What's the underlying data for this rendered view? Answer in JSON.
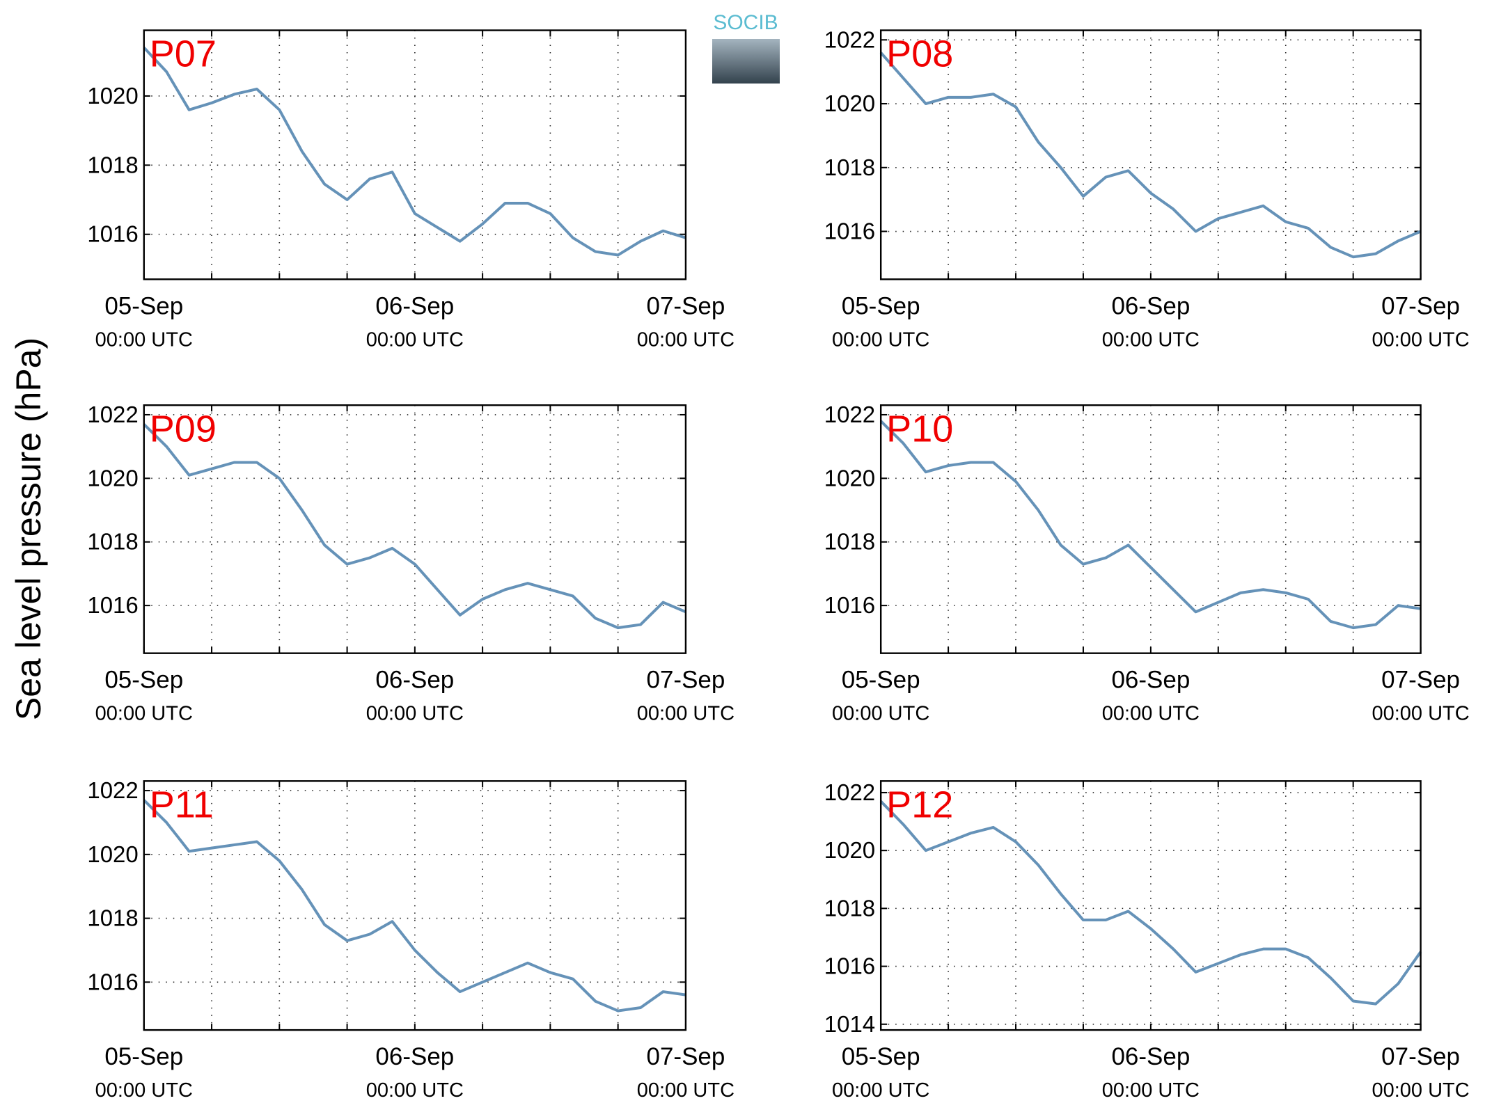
{
  "ylabel": "Sea level pressure (hPa)",
  "logo": "SOCIB",
  "chart_data": [
    {
      "type": "line",
      "annotation": "P07",
      "xlim": [
        "05-Sep 00:00",
        "07-Sep 00:00"
      ],
      "ylim": [
        1014.7,
        1021.9
      ],
      "xticks": [
        {
          "value": "05-Sep 00:00",
          "label": "05-Sep\n00:00 UTC"
        },
        {
          "value": "06-Sep 00:00",
          "label": "06-Sep\n00:00 UTC"
        },
        {
          "value": "07-Sep 00:00",
          "label": "07-Sep\n00:00 UTC"
        }
      ],
      "xminor": [
        "05-Sep 06:00",
        "05-Sep 12:00",
        "05-Sep 18:00",
        "06-Sep 06:00",
        "06-Sep 12:00",
        "06-Sep 18:00"
      ],
      "yticks": [
        1016,
        1018,
        1020
      ],
      "grid": true,
      "x": [
        "05-Sep 00:00",
        "05-Sep 02:00",
        "05-Sep 04:00",
        "05-Sep 06:00",
        "05-Sep 08:00",
        "05-Sep 10:00",
        "05-Sep 12:00",
        "05-Sep 14:00",
        "05-Sep 16:00",
        "05-Sep 18:00",
        "05-Sep 20:00",
        "05-Sep 22:00",
        "06-Sep 00:00",
        "06-Sep 02:00",
        "06-Sep 04:00",
        "06-Sep 06:00",
        "06-Sep 08:00",
        "06-Sep 10:00",
        "06-Sep 12:00",
        "06-Sep 14:00",
        "06-Sep 16:00",
        "06-Sep 18:00",
        "06-Sep 20:00",
        "06-Sep 22:00",
        "07-Sep 00:00"
      ],
      "series": [
        {
          "color": "#6592b8",
          "values": [
            1021.4,
            1020.7,
            1019.6,
            1019.8,
            1020.05,
            1020.2,
            1019.6,
            1018.4,
            1017.45,
            1017.0,
            1017.6,
            1017.8,
            1016.6,
            1016.2,
            1015.8,
            1016.3,
            1016.9,
            1016.9,
            1016.6,
            1015.9,
            1015.5,
            1015.4,
            1015.8,
            1016.1,
            1015.9
          ]
        }
      ]
    },
    {
      "type": "line",
      "annotation": "P08",
      "xlim": [
        "05-Sep 00:00",
        "07-Sep 00:00"
      ],
      "ylim": [
        1014.5,
        1022.3
      ],
      "xticks": [
        {
          "value": "05-Sep 00:00",
          "label": "05-Sep\n00:00 UTC"
        },
        {
          "value": "06-Sep 00:00",
          "label": "06-Sep\n00:00 UTC"
        },
        {
          "value": "07-Sep 00:00",
          "label": "07-Sep\n00:00 UTC"
        }
      ],
      "xminor": [
        "05-Sep 06:00",
        "05-Sep 12:00",
        "05-Sep 18:00",
        "06-Sep 06:00",
        "06-Sep 12:00",
        "06-Sep 18:00"
      ],
      "yticks": [
        1016,
        1018,
        1020,
        1022
      ],
      "grid": true,
      "x": [
        "05-Sep 00:00",
        "05-Sep 02:00",
        "05-Sep 04:00",
        "05-Sep 06:00",
        "05-Sep 08:00",
        "05-Sep 10:00",
        "05-Sep 12:00",
        "05-Sep 14:00",
        "05-Sep 16:00",
        "05-Sep 18:00",
        "05-Sep 20:00",
        "05-Sep 22:00",
        "06-Sep 00:00",
        "06-Sep 02:00",
        "06-Sep 04:00",
        "06-Sep 06:00",
        "06-Sep 08:00",
        "06-Sep 10:00",
        "06-Sep 12:00",
        "06-Sep 14:00",
        "06-Sep 16:00",
        "06-Sep 18:00",
        "06-Sep 20:00",
        "06-Sep 22:00",
        "07-Sep 00:00"
      ],
      "series": [
        {
          "color": "#6592b8",
          "values": [
            1021.6,
            1020.8,
            1020.0,
            1020.2,
            1020.2,
            1020.3,
            1019.9,
            1018.8,
            1018.0,
            1017.1,
            1017.7,
            1017.9,
            1017.2,
            1016.7,
            1016.0,
            1016.4,
            1016.6,
            1016.8,
            1016.3,
            1016.1,
            1015.5,
            1015.2,
            1015.3,
            1015.7,
            1016.0
          ]
        }
      ]
    },
    {
      "type": "line",
      "annotation": "P09",
      "xlim": [
        "05-Sep 00:00",
        "07-Sep 00:00"
      ],
      "ylim": [
        1014.5,
        1022.3
      ],
      "xticks": [
        {
          "value": "05-Sep 00:00",
          "label": "05-Sep\n00:00 UTC"
        },
        {
          "value": "06-Sep 00:00",
          "label": "06-Sep\n00:00 UTC"
        },
        {
          "value": "07-Sep 00:00",
          "label": "07-Sep\n00:00 UTC"
        }
      ],
      "xminor": [
        "05-Sep 06:00",
        "05-Sep 12:00",
        "05-Sep 18:00",
        "06-Sep 06:00",
        "06-Sep 12:00",
        "06-Sep 18:00"
      ],
      "yticks": [
        1016,
        1018,
        1020,
        1022
      ],
      "grid": true,
      "x": [
        "05-Sep 00:00",
        "05-Sep 02:00",
        "05-Sep 04:00",
        "05-Sep 06:00",
        "05-Sep 08:00",
        "05-Sep 10:00",
        "05-Sep 12:00",
        "05-Sep 14:00",
        "05-Sep 16:00",
        "05-Sep 18:00",
        "05-Sep 20:00",
        "05-Sep 22:00",
        "06-Sep 00:00",
        "06-Sep 02:00",
        "06-Sep 04:00",
        "06-Sep 06:00",
        "06-Sep 08:00",
        "06-Sep 10:00",
        "06-Sep 12:00",
        "06-Sep 14:00",
        "06-Sep 16:00",
        "06-Sep 18:00",
        "06-Sep 20:00",
        "06-Sep 22:00",
        "07-Sep 00:00"
      ],
      "series": [
        {
          "color": "#6592b8",
          "values": [
            1021.7,
            1021.0,
            1020.1,
            1020.3,
            1020.5,
            1020.5,
            1020.0,
            1019.0,
            1017.9,
            1017.3,
            1017.5,
            1017.8,
            1017.3,
            1016.5,
            1015.7,
            1016.2,
            1016.5,
            1016.7,
            1016.5,
            1016.3,
            1015.6,
            1015.3,
            1015.4,
            1016.1,
            1015.8
          ]
        }
      ]
    },
    {
      "type": "line",
      "annotation": "P10",
      "xlim": [
        "05-Sep 00:00",
        "07-Sep 00:00"
      ],
      "ylim": [
        1014.5,
        1022.3
      ],
      "xticks": [
        {
          "value": "05-Sep 00:00",
          "label": "05-Sep\n00:00 UTC"
        },
        {
          "value": "06-Sep 00:00",
          "label": "06-Sep\n00:00 UTC"
        },
        {
          "value": "07-Sep 00:00",
          "label": "07-Sep\n00:00 UTC"
        }
      ],
      "xminor": [
        "05-Sep 06:00",
        "05-Sep 12:00",
        "05-Sep 18:00",
        "06-Sep 06:00",
        "06-Sep 12:00",
        "06-Sep 18:00"
      ],
      "yticks": [
        1016,
        1018,
        1020,
        1022
      ],
      "grid": true,
      "x": [
        "05-Sep 00:00",
        "05-Sep 02:00",
        "05-Sep 04:00",
        "05-Sep 06:00",
        "05-Sep 08:00",
        "05-Sep 10:00",
        "05-Sep 12:00",
        "05-Sep 14:00",
        "05-Sep 16:00",
        "05-Sep 18:00",
        "05-Sep 20:00",
        "05-Sep 22:00",
        "06-Sep 00:00",
        "06-Sep 02:00",
        "06-Sep 04:00",
        "06-Sep 06:00",
        "06-Sep 08:00",
        "06-Sep 10:00",
        "06-Sep 12:00",
        "06-Sep 14:00",
        "06-Sep 16:00",
        "06-Sep 18:00",
        "06-Sep 20:00",
        "06-Sep 22:00",
        "07-Sep 00:00"
      ],
      "series": [
        {
          "color": "#6592b8",
          "values": [
            1021.8,
            1021.1,
            1020.2,
            1020.4,
            1020.5,
            1020.5,
            1019.9,
            1019.0,
            1017.9,
            1017.3,
            1017.5,
            1017.9,
            1017.2,
            1016.5,
            1015.8,
            1016.1,
            1016.4,
            1016.5,
            1016.4,
            1016.2,
            1015.5,
            1015.3,
            1015.4,
            1016.0,
            1015.9
          ]
        }
      ]
    },
    {
      "type": "line",
      "annotation": "P11",
      "xlim": [
        "05-Sep 00:00",
        "07-Sep 00:00"
      ],
      "ylim": [
        1014.5,
        1022.3
      ],
      "xticks": [
        {
          "value": "05-Sep 00:00",
          "label": "05-Sep\n00:00 UTC"
        },
        {
          "value": "06-Sep 00:00",
          "label": "06-Sep\n00:00 UTC"
        },
        {
          "value": "07-Sep 00:00",
          "label": "07-Sep\n00:00 UTC"
        }
      ],
      "xminor": [
        "05-Sep 06:00",
        "05-Sep 12:00",
        "05-Sep 18:00",
        "06-Sep 06:00",
        "06-Sep 12:00",
        "06-Sep 18:00"
      ],
      "yticks": [
        1016,
        1018,
        1020,
        1022
      ],
      "grid": true,
      "x": [
        "05-Sep 00:00",
        "05-Sep 02:00",
        "05-Sep 04:00",
        "05-Sep 06:00",
        "05-Sep 08:00",
        "05-Sep 10:00",
        "05-Sep 12:00",
        "05-Sep 14:00",
        "05-Sep 16:00",
        "05-Sep 18:00",
        "05-Sep 20:00",
        "05-Sep 22:00",
        "06-Sep 00:00",
        "06-Sep 02:00",
        "06-Sep 04:00",
        "06-Sep 06:00",
        "06-Sep 08:00",
        "06-Sep 10:00",
        "06-Sep 12:00",
        "06-Sep 14:00",
        "06-Sep 16:00",
        "06-Sep 18:00",
        "06-Sep 20:00",
        "06-Sep 22:00",
        "07-Sep 00:00"
      ],
      "series": [
        {
          "color": "#6592b8",
          "values": [
            1021.7,
            1021.0,
            1020.1,
            1020.2,
            1020.3,
            1020.4,
            1019.8,
            1018.9,
            1017.8,
            1017.3,
            1017.5,
            1017.9,
            1017.0,
            1016.3,
            1015.7,
            1016.0,
            1016.3,
            1016.6,
            1016.3,
            1016.1,
            1015.4,
            1015.1,
            1015.2,
            1015.7,
            1015.6
          ]
        }
      ]
    },
    {
      "type": "line",
      "annotation": "P12",
      "xlim": [
        "05-Sep 00:00",
        "07-Sep 00:00"
      ],
      "ylim": [
        1013.8,
        1022.4
      ],
      "xticks": [
        {
          "value": "05-Sep 00:00",
          "label": "05-Sep\n00:00 UTC"
        },
        {
          "value": "06-Sep 00:00",
          "label": "06-Sep\n00:00 UTC"
        },
        {
          "value": "07-Sep 00:00",
          "label": "07-Sep\n00:00 UTC"
        }
      ],
      "xminor": [
        "05-Sep 06:00",
        "05-Sep 12:00",
        "05-Sep 18:00",
        "06-Sep 06:00",
        "06-Sep 12:00",
        "06-Sep 18:00"
      ],
      "yticks": [
        1014,
        1016,
        1018,
        1020,
        1022
      ],
      "grid": true,
      "x": [
        "05-Sep 00:00",
        "05-Sep 02:00",
        "05-Sep 04:00",
        "05-Sep 06:00",
        "05-Sep 08:00",
        "05-Sep 10:00",
        "05-Sep 12:00",
        "05-Sep 14:00",
        "05-Sep 16:00",
        "05-Sep 18:00",
        "05-Sep 20:00",
        "05-Sep 22:00",
        "06-Sep 00:00",
        "06-Sep 02:00",
        "06-Sep 04:00",
        "06-Sep 06:00",
        "06-Sep 08:00",
        "06-Sep 10:00",
        "06-Sep 12:00",
        "06-Sep 14:00",
        "06-Sep 16:00",
        "06-Sep 18:00",
        "06-Sep 20:00",
        "06-Sep 22:00",
        "07-Sep 00:00"
      ],
      "series": [
        {
          "color": "#6592b8",
          "values": [
            1021.7,
            1020.9,
            1020.0,
            1020.3,
            1020.6,
            1020.8,
            1020.3,
            1019.5,
            1018.5,
            1017.6,
            1017.6,
            1017.9,
            1017.3,
            1016.6,
            1015.8,
            1016.1,
            1016.4,
            1016.6,
            1016.6,
            1016.3,
            1015.6,
            1014.8,
            1014.7,
            1015.4,
            1016.5
          ]
        }
      ]
    }
  ]
}
